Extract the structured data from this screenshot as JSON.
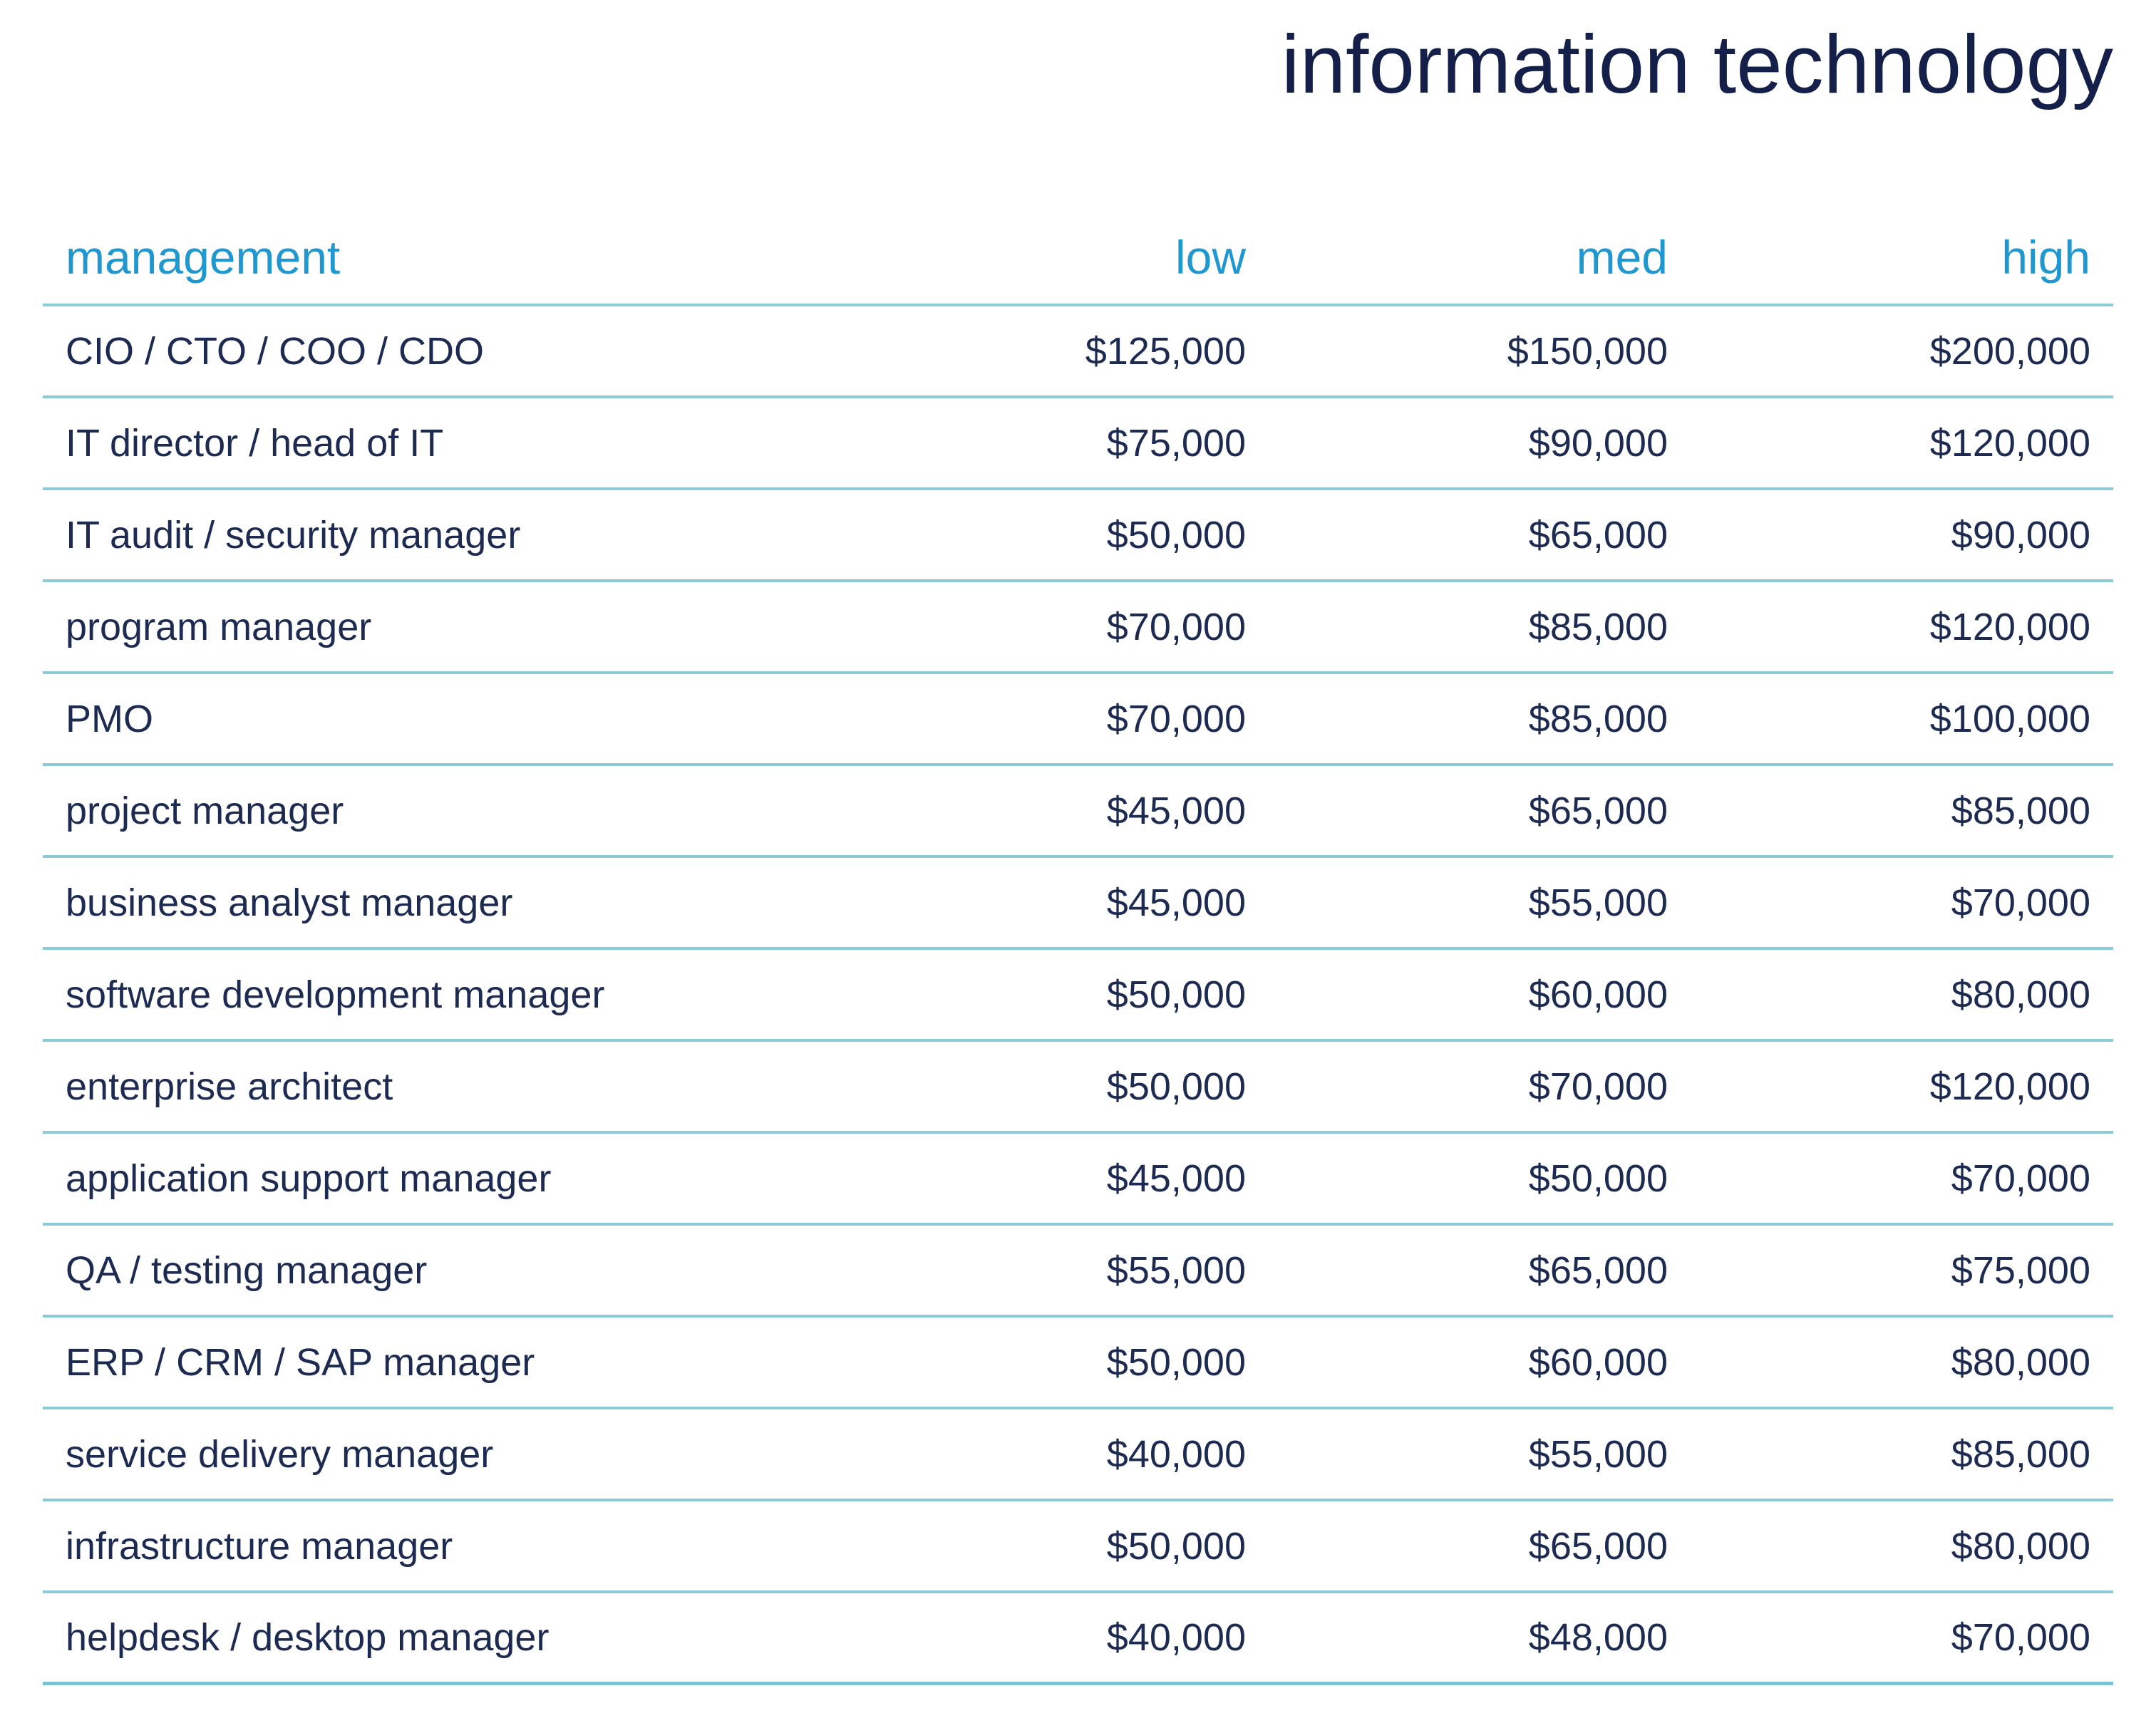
{
  "title": "information technology",
  "table": {
    "headers": {
      "category": "management",
      "low": "low",
      "med": "med",
      "high": "high"
    },
    "rows": [
      {
        "role": "CIO / CTO / COO / CDO",
        "low": "$125,000",
        "med": "$150,000",
        "high": "$200,000"
      },
      {
        "role": "IT director / head of IT",
        "low": "$75,000",
        "med": "$90,000",
        "high": "$120,000"
      },
      {
        "role": "IT audit / security manager",
        "low": "$50,000",
        "med": "$65,000",
        "high": "$90,000"
      },
      {
        "role": "program manager",
        "low": "$70,000",
        "med": "$85,000",
        "high": "$120,000"
      },
      {
        "role": "PMO",
        "low": "$70,000",
        "med": "$85,000",
        "high": "$100,000"
      },
      {
        "role": "project manager",
        "low": "$45,000",
        "med": "$65,000",
        "high": "$85,000"
      },
      {
        "role": "business analyst manager",
        "low": "$45,000",
        "med": "$55,000",
        "high": "$70,000"
      },
      {
        "role": "software development manager",
        "low": "$50,000",
        "med": "$60,000",
        "high": "$80,000"
      },
      {
        "role": "enterprise architect",
        "low": "$50,000",
        "med": "$70,000",
        "high": "$120,000"
      },
      {
        "role": "application support manager",
        "low": "$45,000",
        "med": "$50,000",
        "high": "$70,000"
      },
      {
        "role": "QA / testing manager",
        "low": "$55,000",
        "med": "$65,000",
        "high": "$75,000"
      },
      {
        "role": "ERP / CRM / SAP manager",
        "low": "$50,000",
        "med": "$60,000",
        "high": "$80,000"
      },
      {
        "role": "service delivery manager",
        "low": "$40,000",
        "med": "$55,000",
        "high": "$85,000"
      },
      {
        "role": "infrastructure manager",
        "low": "$50,000",
        "med": "$65,000",
        "high": "$80,000"
      },
      {
        "role": "helpdesk / desktop manager",
        "low": "$40,000",
        "med": "$48,000",
        "high": "$70,000"
      }
    ]
  },
  "colors": {
    "title": "#14204a",
    "header_text": "#1f97d0",
    "body_text": "#1d2b52",
    "rule": "#8ccad8"
  }
}
